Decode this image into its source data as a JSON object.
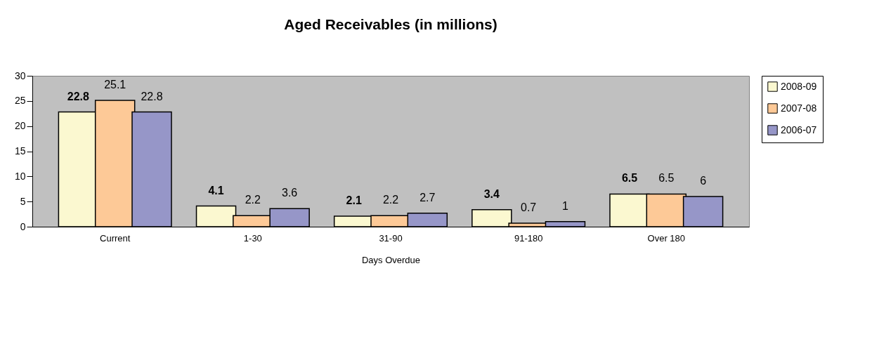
{
  "chart_data": {
    "type": "bar",
    "title": "Aged Receivables (in millions)",
    "xlabel": "Days Overdue",
    "categories": [
      "Current",
      "1-30",
      "31-90",
      "91-180",
      "Over 180"
    ],
    "series": [
      {
        "name": "2008-09",
        "color": "#fbf8d0",
        "values": [
          22.8,
          4.1,
          2.1,
          3.4,
          6.5
        ]
      },
      {
        "name": "2007-08",
        "color": "#fdc997",
        "values": [
          25.1,
          2.2,
          2.2,
          0.7,
          6.5
        ]
      },
      {
        "name": "2006-07",
        "color": "#9696c8",
        "values": [
          22.8,
          3.6,
          2.7,
          1,
          6
        ]
      }
    ],
    "ylim": [
      0,
      30
    ],
    "yticks": [
      0,
      5,
      10,
      15,
      20,
      25,
      30
    ],
    "grid": false,
    "legend": "right",
    "data_labels": true
  }
}
